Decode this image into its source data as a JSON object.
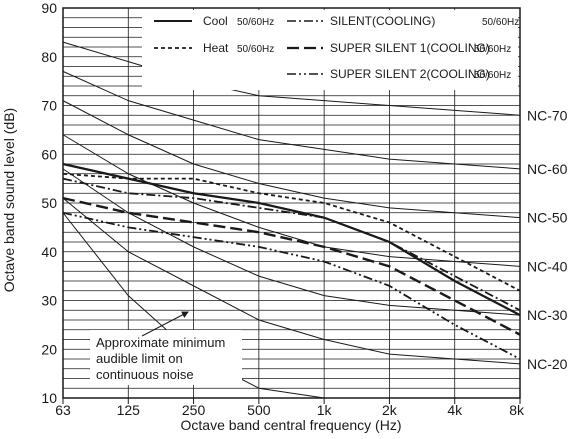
{
  "chart_data": {
    "type": "line",
    "xlabel": "Octave band central frequency (Hz)",
    "ylabel": "Octave band sound level (dB)",
    "x_ticks": [
      "63",
      "125",
      "250",
      "500",
      "1k",
      "2k",
      "4k",
      "8k"
    ],
    "y_ticks": [
      10,
      20,
      30,
      40,
      50,
      60,
      70,
      80,
      90
    ],
    "ylim": [
      10,
      90
    ],
    "grid": true,
    "legend_position": "top-right",
    "legend": [
      {
        "label": "Cool",
        "freq": "50/60Hz",
        "style": "solid"
      },
      {
        "label": "SILENT(COOLING)",
        "freq": "50/60Hz",
        "style": "dashdot"
      },
      {
        "label": "Heat",
        "freq": "50/60Hz",
        "style": "dotted"
      },
      {
        "label": "SUPER SILENT 1(COOLING)",
        "freq": "50/60Hz",
        "style": "longdash"
      },
      {
        "label": "SUPER SILENT 2(COOLING)",
        "freq": "50/60Hz",
        "style": "dashdotdot"
      }
    ],
    "series": [
      {
        "name": "Cool 50/60Hz",
        "style": "solid",
        "values": [
          58,
          55,
          52,
          50,
          47,
          42,
          34,
          27
        ]
      },
      {
        "name": "Heat 50/60Hz",
        "style": "dotted",
        "values": [
          56,
          55,
          55,
          52,
          50,
          46,
          39,
          32
        ]
      },
      {
        "name": "SILENT(COOLING)",
        "style": "dashdot",
        "values": [
          55,
          52,
          51,
          49,
          47,
          42,
          35,
          28
        ]
      },
      {
        "name": "SUPER SILENT 1(COOLING)",
        "style": "longdash",
        "values": [
          51,
          48,
          46,
          44,
          41,
          37,
          30,
          23
        ]
      },
      {
        "name": "SUPER SILENT 2(COOLING)",
        "style": "dashdotdot",
        "values": [
          48,
          45,
          43,
          41,
          38,
          33,
          25,
          18
        ]
      }
    ],
    "nc_curves": [
      {
        "label": "NC-70",
        "values": [
          83,
          79,
          75,
          72,
          71,
          70,
          69,
          68
        ]
      },
      {
        "label": "NC-60",
        "values": [
          77,
          71,
          67,
          63,
          61,
          59,
          58,
          57
        ]
      },
      {
        "label": "NC-50",
        "values": [
          71,
          64,
          58,
          54,
          51,
          49,
          48,
          47
        ]
      },
      {
        "label": "NC-40",
        "values": [
          64,
          56,
          50,
          45,
          41,
          39,
          38,
          37
        ]
      },
      {
        "label": "NC-30",
        "values": [
          57,
          48,
          41,
          35,
          31,
          29,
          28,
          27
        ]
      },
      {
        "label": "NC-20",
        "values": [
          51,
          40,
          33,
          26,
          22,
          19,
          18,
          17
        ]
      }
    ],
    "annotation": {
      "lines": [
        "Approximate minimum",
        "audible limit on",
        "continuous noise"
      ],
      "values": [
        48,
        31,
        19,
        12,
        10,
        10,
        10,
        10
      ]
    }
  }
}
